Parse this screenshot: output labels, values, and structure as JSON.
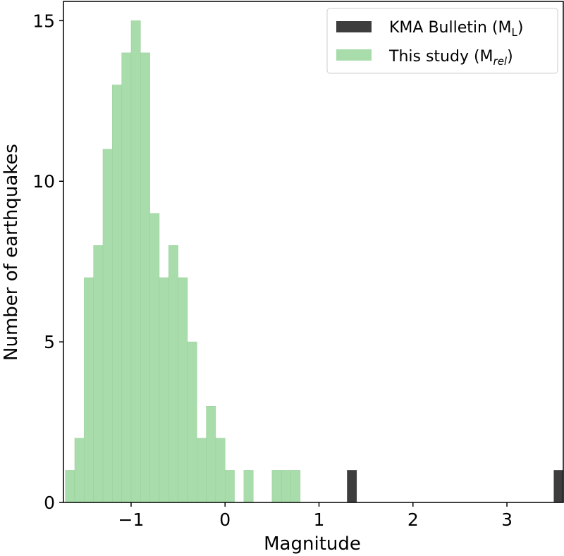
{
  "chart_data": {
    "type": "bar",
    "subtype": "histogram",
    "title": "",
    "xlabel": "Magnitude",
    "ylabel": "Number of earthquakes",
    "xlim": [
      -1.72,
      3.6
    ],
    "ylim": [
      0,
      15.6
    ],
    "bin_width": 0.1,
    "x_ticks": [
      {
        "value": -1,
        "label": "−1"
      },
      {
        "value": 0,
        "label": "0"
      },
      {
        "value": 1,
        "label": "1"
      },
      {
        "value": 2,
        "label": "2"
      },
      {
        "value": 3,
        "label": "3"
      }
    ],
    "y_ticks": [
      {
        "value": 0,
        "label": "0"
      },
      {
        "value": 5,
        "label": "5"
      },
      {
        "value": 10,
        "label": "10"
      },
      {
        "value": 15,
        "label": "15"
      }
    ],
    "grid": false,
    "legend_position": "top-right",
    "series": [
      {
        "name": "This study (Mrel)",
        "legend_main": "This study (M",
        "legend_sub": "rel",
        "legend_close": ")",
        "color": "#a8dcaa",
        "bins": [
          {
            "x": -1.7,
            "count": 1
          },
          {
            "x": -1.6,
            "count": 2
          },
          {
            "x": -1.5,
            "count": 7
          },
          {
            "x": -1.4,
            "count": 8
          },
          {
            "x": -1.3,
            "count": 11
          },
          {
            "x": -1.2,
            "count": 13
          },
          {
            "x": -1.1,
            "count": 14
          },
          {
            "x": -1.0,
            "count": 15
          },
          {
            "x": -0.9,
            "count": 14
          },
          {
            "x": -0.8,
            "count": 9
          },
          {
            "x": -0.7,
            "count": 7
          },
          {
            "x": -0.6,
            "count": 8
          },
          {
            "x": -0.5,
            "count": 7
          },
          {
            "x": -0.4,
            "count": 5
          },
          {
            "x": -0.3,
            "count": 2
          },
          {
            "x": -0.2,
            "count": 3
          },
          {
            "x": -0.1,
            "count": 2
          },
          {
            "x": 0.0,
            "count": 1
          },
          {
            "x": 0.2,
            "count": 1
          },
          {
            "x": 0.5,
            "count": 1
          },
          {
            "x": 0.6,
            "count": 1
          },
          {
            "x": 0.7,
            "count": 1
          }
        ]
      },
      {
        "name": "KMA Bulletin (ML)",
        "legend_main": "KMA Bulletin (M",
        "legend_sub": "L",
        "legend_close": ")",
        "color": "#3d3d3d",
        "bins": [
          {
            "x": 1.3,
            "count": 1
          },
          {
            "x": 3.5,
            "count": 1
          }
        ]
      }
    ]
  }
}
